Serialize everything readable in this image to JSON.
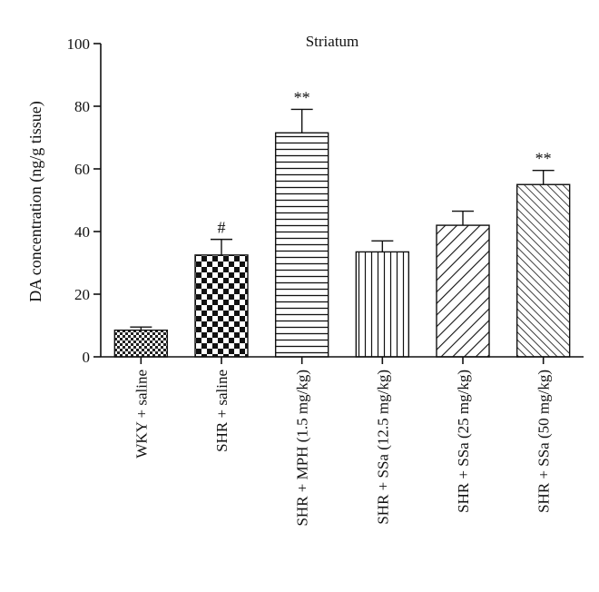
{
  "chart_data": {
    "type": "bar",
    "title": "Striatum",
    "ylabel": "DA concentration (ng/g tissue)",
    "xlabel": "",
    "ylim": [
      0,
      100
    ],
    "yticks": [
      0,
      20,
      40,
      60,
      80,
      100
    ],
    "categories": [
      "WKY + saline",
      "SHR + saline",
      "SHR + MPH (1.5 mg/kg)",
      "SHR + SSa (12.5 mg/kg)",
      "SHR + SSa (25 mg/kg)",
      "SHR + SSa (50 mg/kg)"
    ],
    "values": [
      8.5,
      32.5,
      71.5,
      33.5,
      42,
      55
    ],
    "errors": [
      1,
      5,
      7.5,
      3.5,
      4.5,
      4.5
    ],
    "patterns": [
      "fine-checker",
      "checker",
      "horizontal-lines",
      "vertical-lines",
      "diagonal-wide",
      "diagonal-dense"
    ],
    "annotations": [
      "",
      "#",
      "**",
      "",
      "",
      "**"
    ],
    "grid": false,
    "legend": "none"
  }
}
